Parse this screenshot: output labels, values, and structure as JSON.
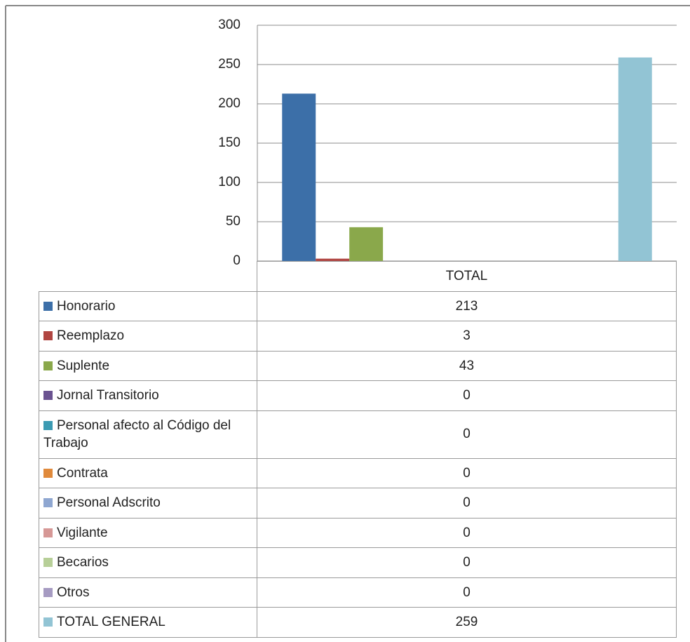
{
  "chart_data": {
    "type": "bar",
    "categories": [
      "TOTAL"
    ],
    "series": [
      {
        "name": "Honorario",
        "color": "#3c6fa8",
        "values": [
          213
        ]
      },
      {
        "name": "Reemplazo",
        "color": "#b04541",
        "values": [
          3
        ]
      },
      {
        "name": "Suplente",
        "color": "#8aa84b",
        "values": [
          43
        ]
      },
      {
        "name": "Jornal Transitorio",
        "color": "#6a5290",
        "values": [
          0
        ]
      },
      {
        "name": "Personal afecto al Código del Trabajo",
        "color": "#3b9ab2",
        "values": [
          0
        ]
      },
      {
        "name": "Contrata",
        "color": "#e08a3c",
        "values": [
          0
        ]
      },
      {
        "name": "Personal Adscrito",
        "color": "#8fa7d1",
        "values": [
          0
        ]
      },
      {
        "name": "Vigilante",
        "color": "#d69896",
        "values": [
          0
        ]
      },
      {
        "name": "Becarios",
        "color": "#b7cf98",
        "values": [
          0
        ]
      },
      {
        "name": "Otros",
        "color": "#a69bc2",
        "values": [
          0
        ]
      },
      {
        "name": "TOTAL GENERAL",
        "color": "#92c4d4",
        "values": [
          259
        ]
      }
    ],
    "ylim": [
      0,
      300
    ],
    "yticks": [
      0,
      50,
      100,
      150,
      200,
      250,
      300
    ],
    "grid": true
  }
}
